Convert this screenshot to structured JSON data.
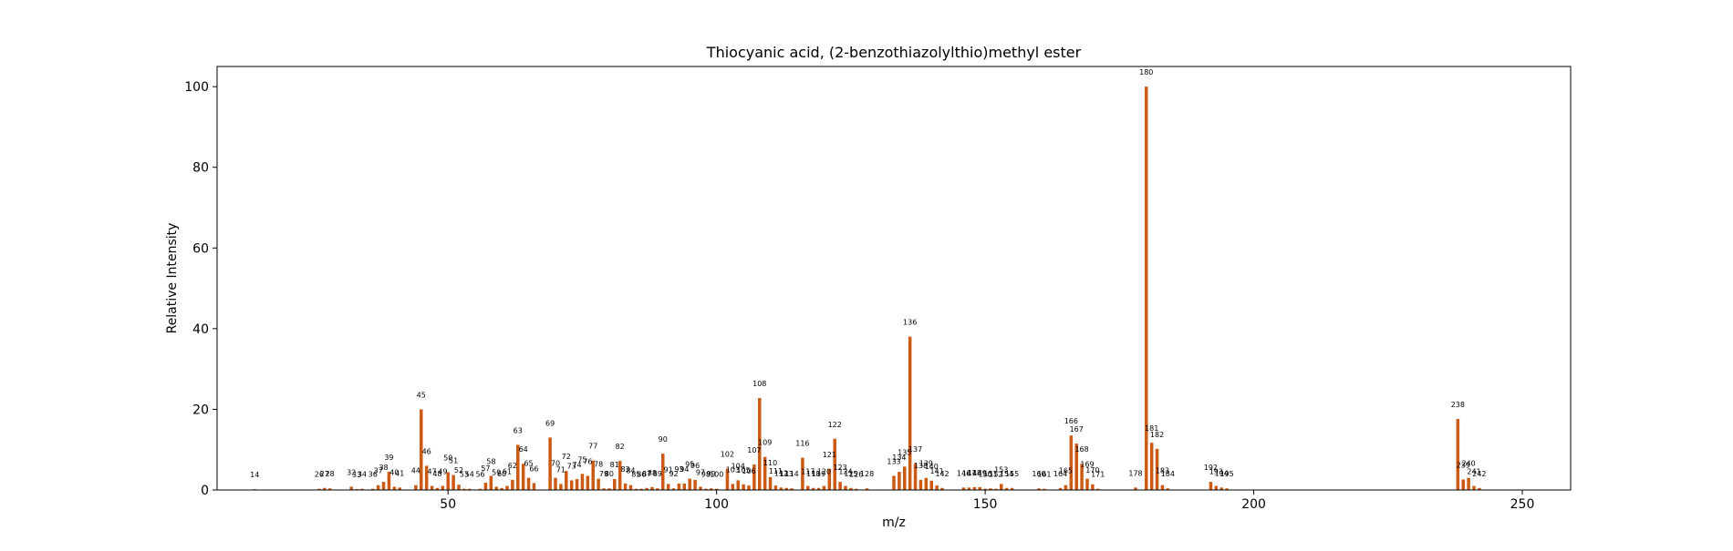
{
  "chart_data": {
    "type": "bar",
    "title": "Thiocyanic acid, (2-benzothiazolylthio)methyl ester",
    "xlabel": "m/z",
    "ylabel": "Relative Intensity",
    "xlim": [
      7,
      259
    ],
    "ylim": [
      0,
      105
    ],
    "xticks": [
      50,
      100,
      150,
      200,
      250
    ],
    "yticks": [
      0,
      20,
      40,
      60,
      80,
      100
    ],
    "grid": false,
    "bar_color": "#cc5a12",
    "series": [
      {
        "x": [
          14,
          26,
          27,
          28,
          32,
          33,
          34,
          36,
          37,
          38,
          39,
          40,
          41,
          44,
          45,
          46,
          47,
          48,
          49,
          50,
          51,
          52,
          53,
          54,
          56,
          57,
          58,
          59,
          60,
          61,
          62,
          63,
          64,
          65,
          66,
          69,
          70,
          71,
          72,
          73,
          74,
          75,
          76,
          77,
          78,
          79,
          80,
          81,
          82,
          83,
          84,
          85,
          86,
          87,
          88,
          89,
          90,
          91,
          92,
          93,
          94,
          95,
          96,
          97,
          98,
          99,
          100,
          102,
          103,
          104,
          105,
          106,
          107,
          108,
          109,
          110,
          111,
          112,
          113,
          114,
          116,
          117,
          118,
          119,
          120,
          121,
          122,
          123,
          124,
          125,
          126,
          128,
          133,
          134,
          135,
          136,
          137,
          138,
          139,
          140,
          141,
          142,
          146,
          147,
          148,
          149,
          150,
          151,
          152,
          153,
          154,
          155,
          160,
          161,
          164,
          165,
          166,
          167,
          168,
          169,
          170,
          171,
          178,
          180,
          181,
          182,
          183,
          184,
          192,
          193,
          194,
          195,
          238,
          239,
          240,
          241,
          242
        ],
        "values": [
          0.2,
          0.3,
          0.5,
          0.4,
          0.8,
          0.2,
          0.3,
          0.3,
          1.2,
          2,
          4.5,
          0.8,
          0.6,
          1.2,
          20,
          6,
          1,
          0.5,
          1,
          4.4,
          3.7,
          1.3,
          0.3,
          0.3,
          0.3,
          1.8,
          3.5,
          0.8,
          0.5,
          1,
          2.5,
          11.2,
          6.5,
          3,
          1.7,
          13,
          3,
          1.5,
          4.7,
          2.4,
          2.7,
          4,
          3.5,
          7.3,
          2.8,
          0.4,
          0.4,
          2.7,
          7.2,
          1.6,
          1.2,
          0.3,
          0.3,
          0.5,
          0.7,
          0.4,
          9,
          1.5,
          0.4,
          1.6,
          1.6,
          2.8,
          2.5,
          0.8,
          0.3,
          0.4,
          0.3,
          5.3,
          1.5,
          2.4,
          1.4,
          1.1,
          6.3,
          22.8,
          8.2,
          3.2,
          1.1,
          0.6,
          0.5,
          0.4,
          8,
          1,
          0.5,
          0.5,
          1,
          5.2,
          12.7,
          2,
          1,
          0.5,
          0.3,
          0.4,
          3.5,
          4.5,
          5.8,
          38,
          6.5,
          2.5,
          3,
          2.3,
          1.1,
          0.5,
          0.6,
          0.6,
          0.7,
          0.7,
          0.3,
          0.4,
          0.3,
          1.5,
          0.5,
          0.5,
          0.4,
          0.3,
          0.5,
          1.2,
          13.5,
          11.5,
          6.5,
          2.8,
          1.4,
          0.3,
          0.6,
          100,
          11.7,
          10.2,
          1.2,
          0.4,
          2,
          1,
          0.6,
          0.4,
          17.6,
          2.6,
          3,
          1,
          0.5
        ]
      }
    ]
  }
}
